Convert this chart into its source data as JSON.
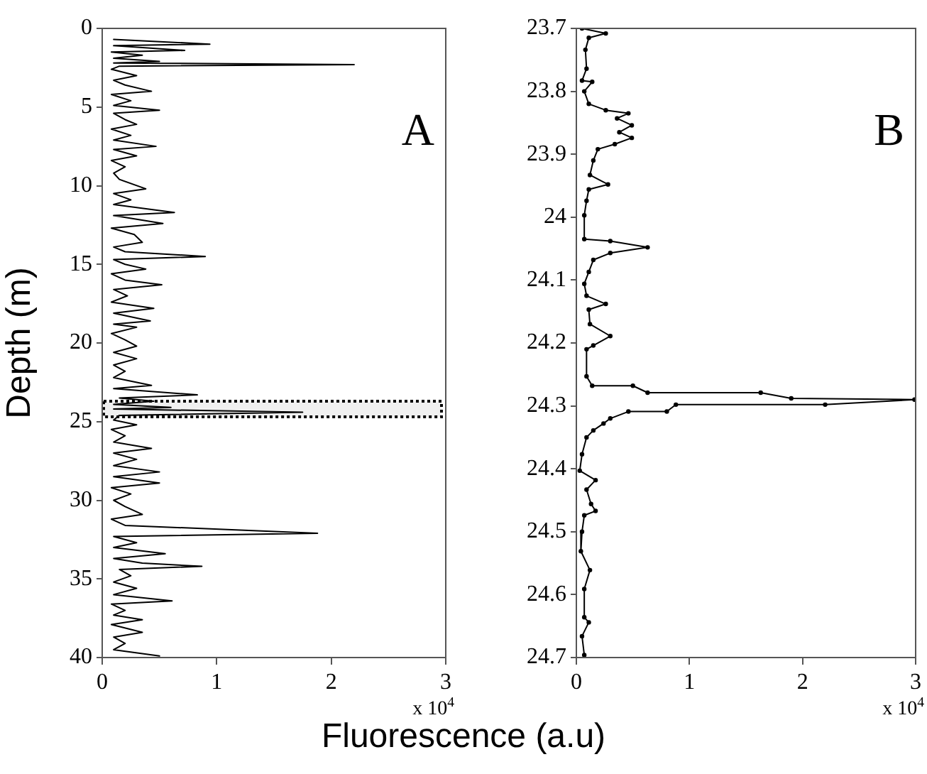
{
  "chart_data": [
    {
      "type": "line",
      "ylabel": "Depth (m)",
      "xlabel": "Fluorescence (a.u)",
      "annotations": [
        "A",
        "x 10$^{4}$"
      ],
      "xlim": [
        0,
        3
      ],
      "xticks": [
        0,
        1,
        2,
        3
      ],
      "ylim": [
        40,
        0
      ],
      "yticks": [
        0,
        5,
        10,
        15,
        20,
        25,
        30,
        35,
        40
      ],
      "grid": false,
      "legend": false,
      "marker": "none",
      "line_style": "solid",
      "bands": [
        {
          "axis": "y",
          "from": 23.7,
          "to": 24.7,
          "color": "#000000"
        }
      ],
      "series": [
        {
          "color": "#000000",
          "x": [
            0.1,
            0.94,
            0.1,
            0.72,
            0.08,
            0.35,
            0.1,
            0.5,
            0.1,
            2.2,
            0.15,
            0.08,
            0.3,
            0.1,
            0.2,
            0.43,
            0.08,
            0.25,
            0.1,
            0.5,
            0.1,
            0.2,
            0.3,
            0.08,
            0.25,
            0.1,
            0.47,
            0.1,
            0.3,
            0.08,
            0.2,
            0.1,
            0.15,
            0.38,
            0.1,
            0.25,
            0.1,
            0.63,
            0.1,
            0.53,
            0.08,
            0.28,
            0.35,
            0.1,
            0.2,
            0.9,
            0.1,
            0.2,
            0.38,
            0.08,
            0.2,
            0.52,
            0.1,
            0.22,
            0.08,
            0.45,
            0.1,
            0.42,
            0.1,
            0.3,
            0.08,
            0.2,
            0.3,
            0.1,
            0.3,
            0.1,
            0.2,
            0.1,
            0.43,
            0.1,
            0.83,
            0.15,
            0.45,
            0.1,
            0.6,
            0.1,
            1.75,
            0.15,
            0.1,
            0.3,
            0.08,
            0.2,
            0.1,
            0.43,
            0.1,
            0.3,
            0.1,
            0.5,
            0.1,
            0.5,
            0.08,
            0.25,
            0.1,
            0.2,
            0.35,
            0.08,
            0.2,
            1.88,
            0.1,
            0.3,
            0.1,
            0.55,
            0.1,
            0.35,
            0.87,
            0.15,
            0.25,
            0.1,
            0.3,
            0.1,
            0.61,
            0.08,
            0.2,
            0.1,
            0.35,
            0.08,
            0.35,
            0.1,
            0.2,
            0.1,
            0.5
          ],
          "values": [
            0.7,
            1.0,
            1.1,
            1.4,
            1.5,
            1.7,
            1.9,
            2.1,
            2.2,
            2.3,
            2.4,
            2.6,
            3.0,
            3.3,
            3.6,
            4.0,
            4.2,
            4.6,
            4.9,
            5.2,
            5.4,
            5.8,
            6.1,
            6.4,
            6.8,
            7.1,
            7.5,
            7.7,
            8.1,
            8.4,
            8.8,
            9.2,
            9.6,
            10.2,
            10.5,
            10.9,
            11.2,
            11.7,
            11.9,
            12.4,
            12.7,
            13.1,
            13.6,
            13.9,
            14.2,
            14.5,
            14.7,
            15.0,
            15.3,
            15.6,
            16.0,
            16.3,
            16.6,
            17.0,
            17.4,
            17.8,
            18.1,
            18.6,
            18.8,
            19.0,
            19.4,
            19.8,
            20.2,
            20.6,
            21.0,
            21.4,
            21.8,
            22.2,
            22.7,
            22.9,
            23.3,
            23.5,
            23.7,
            23.9,
            24.1,
            24.2,
            24.4,
            24.6,
            24.9,
            25.2,
            25.5,
            25.9,
            26.3,
            26.7,
            27.0,
            27.4,
            27.8,
            28.2,
            28.5,
            28.9,
            29.2,
            29.6,
            30.0,
            30.4,
            30.9,
            31.2,
            31.6,
            32.1,
            32.3,
            32.7,
            33.0,
            33.4,
            33.7,
            34.0,
            34.2,
            34.4,
            34.8,
            35.2,
            35.6,
            36.0,
            36.4,
            36.6,
            37.0,
            37.3,
            37.6,
            37.9,
            38.4,
            38.7,
            39.1,
            39.5,
            39.9
          ]
        }
      ]
    },
    {
      "type": "line",
      "annotations": [
        "B",
        "x 10$^{4}$"
      ],
      "xlim": [
        0,
        3
      ],
      "xticks": [
        0,
        1,
        2,
        3
      ],
      "ylim": [
        24.7,
        23.7
      ],
      "yticks": [
        23.7,
        23.8,
        23.9,
        24,
        24.1,
        24.2,
        24.3,
        24.4,
        24.5,
        24.6,
        24.7
      ],
      "grid": false,
      "legend": false,
      "marker": "circle",
      "line_style": "solid",
      "series": [
        {
          "color": "#000000",
          "x": [
            0.05,
            0.26,
            0.11,
            0.08,
            0.09,
            0.05,
            0.14,
            0.07,
            0.11,
            0.26,
            0.46,
            0.36,
            0.49,
            0.38,
            0.49,
            0.34,
            0.19,
            0.15,
            0.12,
            0.28,
            0.11,
            0.09,
            0.07,
            0.07,
            0.3,
            0.63,
            0.3,
            0.15,
            0.11,
            0.07,
            0.09,
            0.26,
            0.11,
            0.12,
            0.3,
            0.15,
            0.09,
            0.09,
            0.14,
            0.5,
            0.63,
            1.63,
            1.9,
            2.99,
            2.2,
            0.88,
            0.8,
            0.46,
            0.3,
            0.24,
            0.15,
            0.09,
            0.05,
            0.03,
            0.17,
            0.09,
            0.13,
            0.17,
            0.07,
            0.05,
            0.04,
            0.12,
            0.07,
            0.07,
            0.11,
            0.05,
            0.07
          ],
          "values": [
            23.7,
            23.708,
            23.715,
            23.734,
            23.764,
            23.783,
            23.785,
            23.8,
            23.82,
            23.83,
            23.835,
            23.843,
            23.854,
            23.865,
            23.874,
            23.884,
            23.892,
            23.91,
            23.933,
            23.948,
            23.956,
            23.974,
            23.997,
            24.035,
            24.038,
            24.048,
            24.057,
            24.068,
            24.087,
            24.106,
            24.125,
            24.138,
            24.147,
            24.17,
            24.189,
            24.204,
            24.21,
            24.253,
            24.268,
            24.268,
            24.279,
            24.279,
            24.288,
            24.29,
            24.298,
            24.298,
            24.309,
            24.309,
            24.32,
            24.328,
            24.339,
            24.35,
            24.377,
            24.403,
            24.418,
            24.433,
            24.456,
            24.467,
            24.474,
            24.5,
            24.531,
            24.561,
            24.591,
            24.636,
            24.644,
            24.666,
            24.696
          ]
        }
      ]
    }
  ]
}
